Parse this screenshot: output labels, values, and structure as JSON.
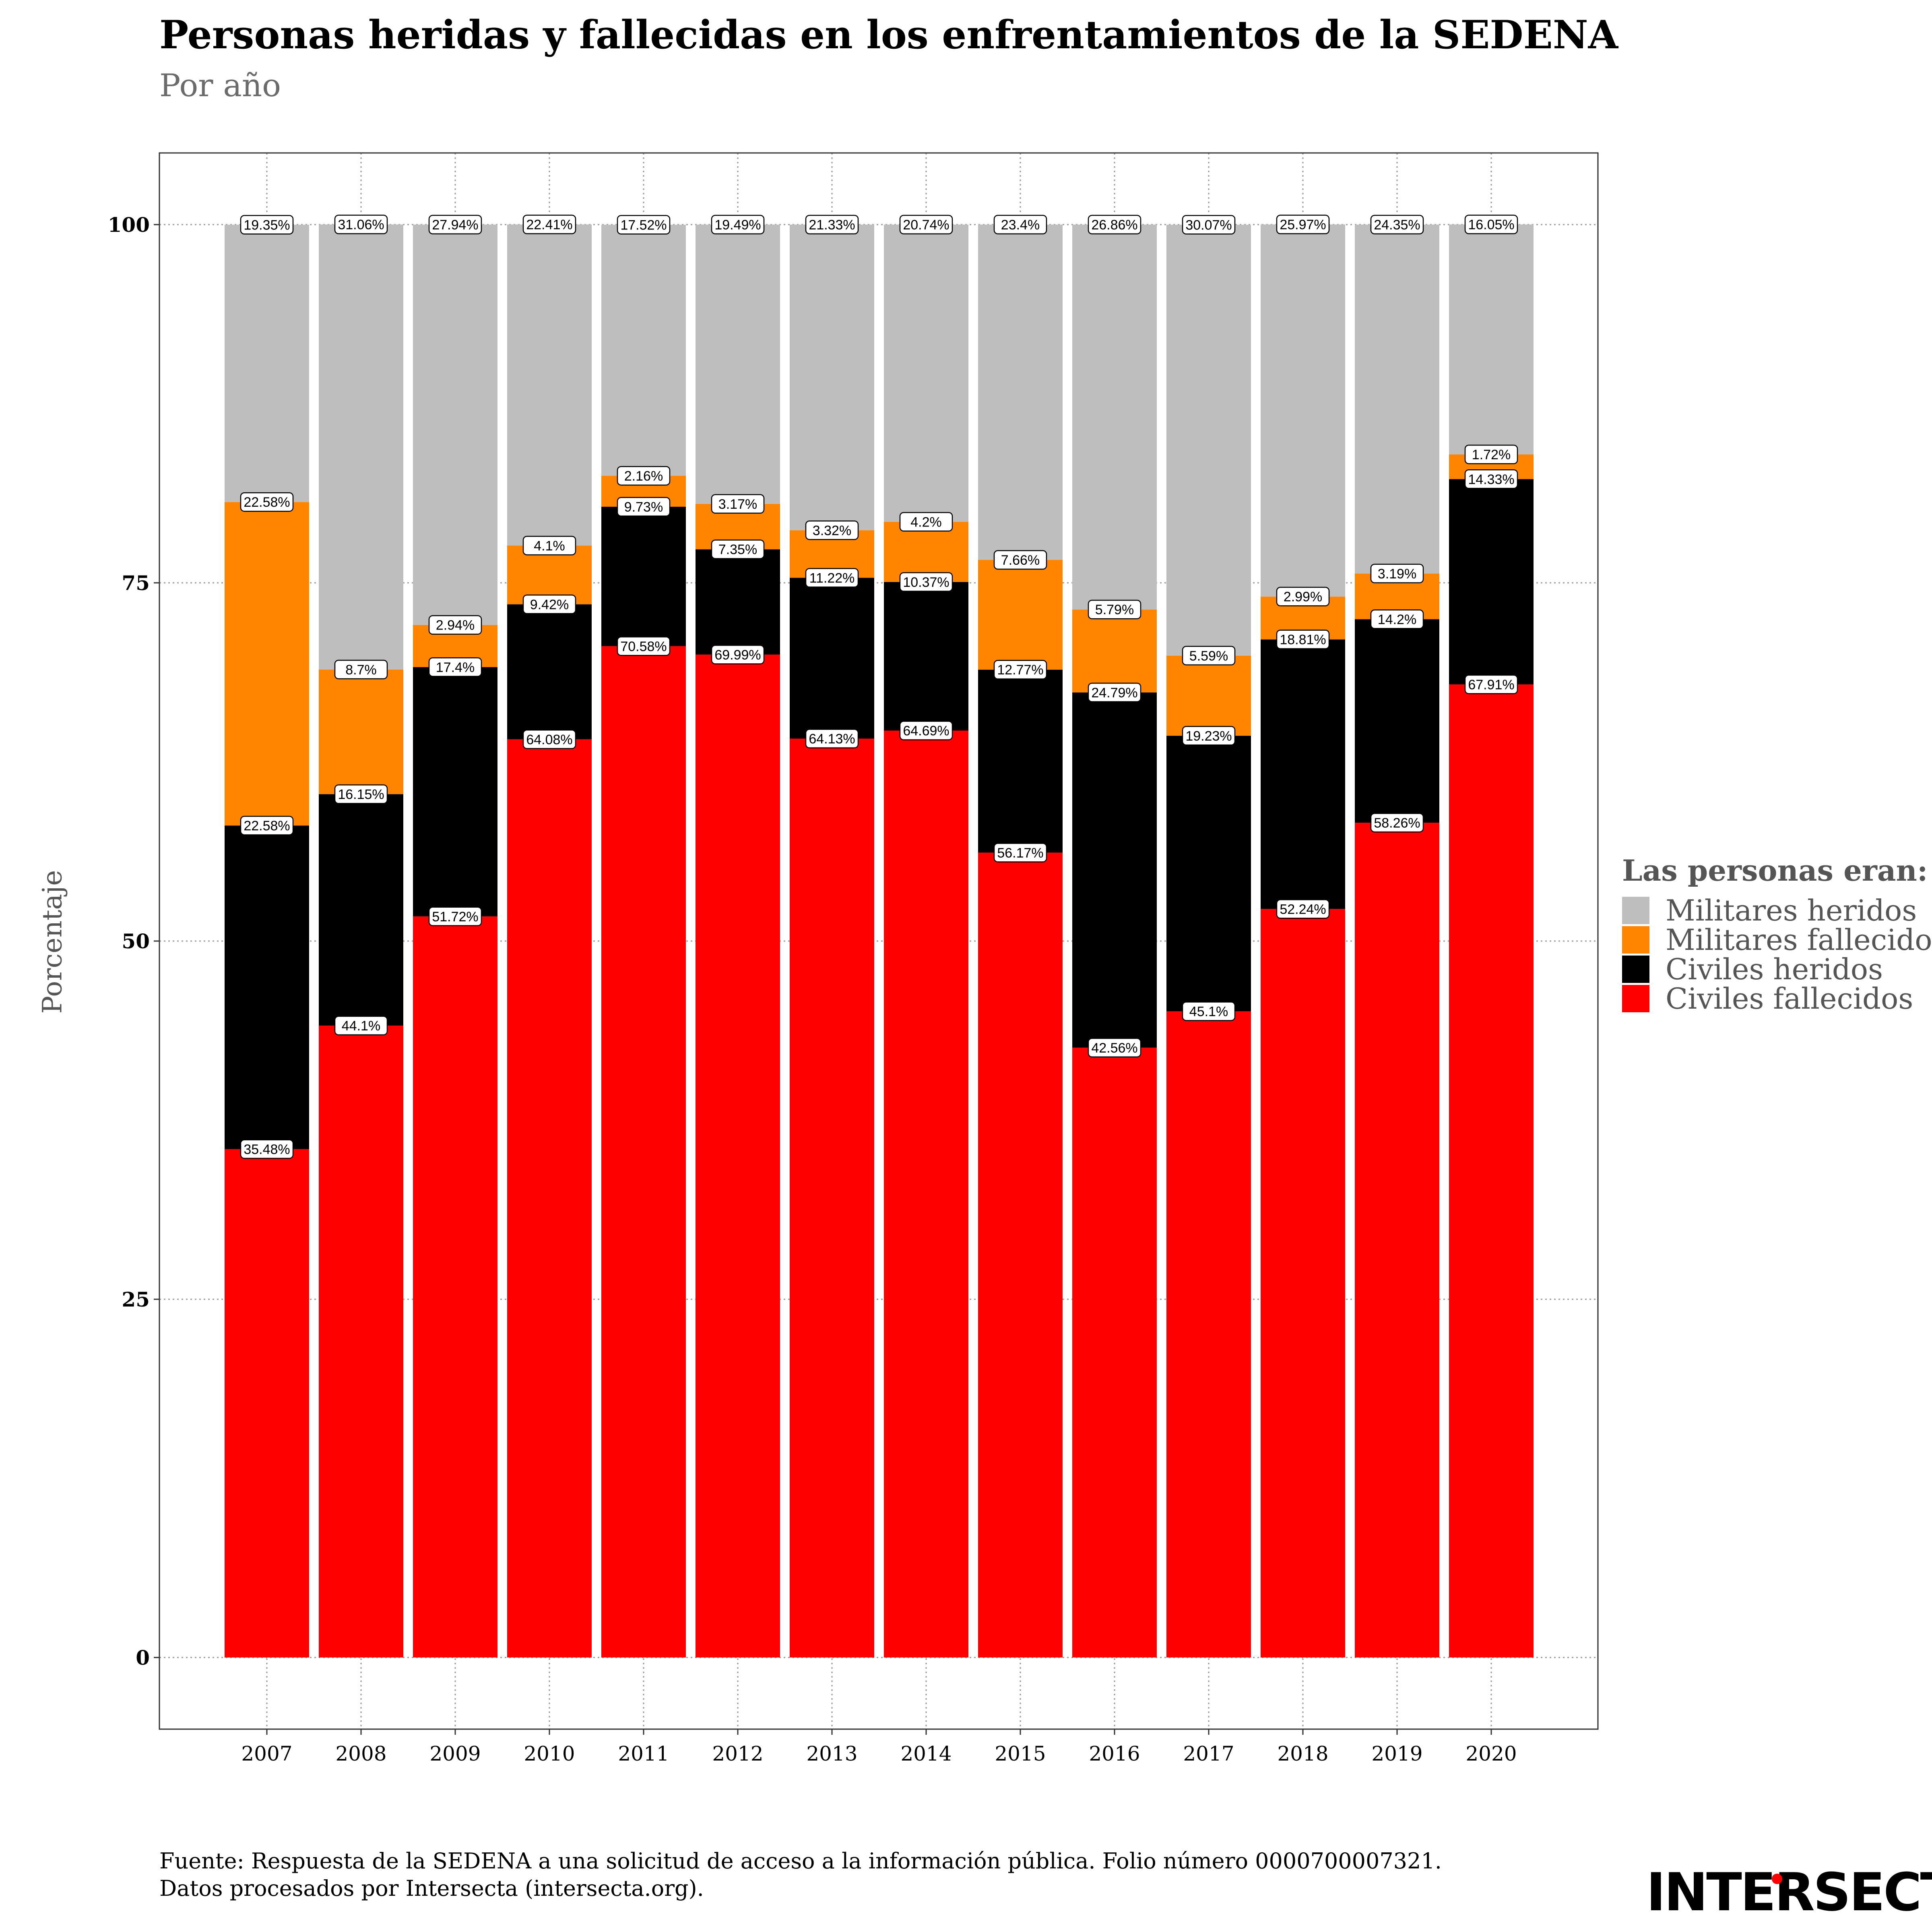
{
  "title": "Personas heridas y fallecidas en los enfrentamientos de la SEDENA",
  "subtitle": "Por año",
  "source_line1": "Fuente: Respuesta de la SEDENA a una solicitud de acceso a la información pública. Folio número 0000700007321.",
  "source_line2": "Datos procesados por Intersecta (intersecta.org).",
  "brand": "INTERSECTA",
  "legend": {
    "title": "Las personas eran:",
    "items": [
      {
        "label": "Militares heridos",
        "color": "#bebebe"
      },
      {
        "label": "Militares fallecidos",
        "color": "#ff8500"
      },
      {
        "label": "Civiles heridos",
        "color": "#000000"
      },
      {
        "label": "Civiles fallecidos",
        "color": "#ff0000"
      }
    ]
  },
  "chart_data": {
    "type": "bar",
    "stacked": true,
    "ylabel": "Porcentaje",
    "xlabel": "",
    "ylim": [
      -5,
      105
    ],
    "yticks": [
      0,
      25,
      50,
      75,
      100
    ],
    "grid": true,
    "legend_position": "right",
    "categories": [
      "2007",
      "2008",
      "2009",
      "2010",
      "2011",
      "2012",
      "2013",
      "2014",
      "2015",
      "2016",
      "2017",
      "2018",
      "2019",
      "2020"
    ],
    "series": [
      {
        "name": "Civiles fallecidos",
        "color": "#ff0000",
        "values": [
          35.48,
          44.1,
          51.72,
          64.08,
          70.58,
          69.99,
          64.13,
          64.69,
          56.17,
          42.56,
          45.1,
          52.24,
          58.26,
          67.91
        ],
        "labels": [
          "35.48%",
          "44.1%",
          "51.72%",
          "64.08%",
          "70.58%",
          "69.99%",
          "64.13%",
          "64.69%",
          "56.17%",
          "42.56%",
          "45.1%",
          "52.24%",
          "58.26%",
          "67.91%"
        ]
      },
      {
        "name": "Civiles heridos",
        "color": "#000000",
        "values": [
          22.58,
          16.15,
          17.4,
          9.42,
          9.73,
          7.35,
          11.22,
          10.37,
          12.77,
          24.79,
          19.23,
          18.81,
          14.2,
          14.33
        ],
        "labels": [
          "22.58%",
          "16.15%",
          "17.4%",
          "9.42%",
          "9.73%",
          "7.35%",
          "11.22%",
          "10.37%",
          "12.77%",
          "24.79%",
          "19.23%",
          "18.81%",
          "14.2%",
          "14.33%"
        ]
      },
      {
        "name": "Militares fallecidos",
        "color": "#ff8500",
        "values": [
          22.58,
          8.7,
          2.94,
          4.1,
          2.16,
          3.17,
          3.32,
          4.2,
          7.66,
          5.79,
          5.59,
          2.99,
          3.19,
          1.72
        ],
        "labels": [
          "22.58%",
          "8.7%",
          "2.94%",
          "4.1%",
          "2.16%",
          "3.17%",
          "3.32%",
          "4.2%",
          "7.66%",
          "5.79%",
          "5.59%",
          "2.99%",
          "3.19%",
          "1.72%"
        ]
      },
      {
        "name": "Militares heridos",
        "color": "#bebebe",
        "values": [
          19.35,
          31.06,
          27.94,
          22.41,
          17.52,
          19.49,
          21.33,
          20.74,
          23.4,
          26.86,
          30.07,
          25.97,
          24.35,
          16.05
        ],
        "labels": [
          "19.35%",
          "31.06%",
          "27.94%",
          "22.41%",
          "17.52%",
          "19.49%",
          "21.33%",
          "20.74%",
          "23.4%",
          "26.86%",
          "30.07%",
          "25.97%",
          "24.35%",
          "16.05%"
        ]
      }
    ]
  }
}
